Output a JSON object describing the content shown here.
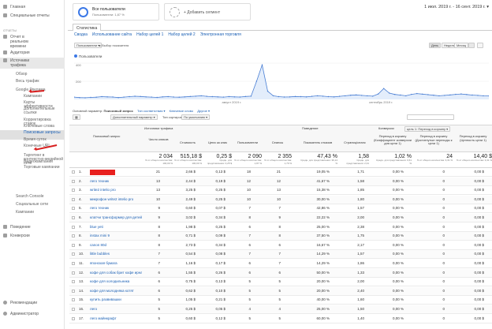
{
  "sidebar": {
    "items": [
      {
        "label": "Главная"
      },
      {
        "label": "Специальные отчеты"
      },
      {
        "label": "ОТЧЕТЫ"
      },
      {
        "label": "Отчет в реальном времени"
      },
      {
        "label": "Аудитория"
      },
      {
        "label": "Источники трафика"
      }
    ],
    "sub_overview": "Обзор",
    "sub_all_traffic": "Весь трафик",
    "sub_google_ads": "Google Реклама",
    "ads_items": [
      "Кампании",
      "Карты эффективности",
      "Дополнительные ссылки",
      "Корректировка ставок",
      "Ключевые слова",
      "Поисковые запросы",
      "Время суток",
      "Конечные URL",
      "Таргетинг в контекстно-медийной сети",
      "Видеокампании",
      "Торговые кампании"
    ],
    "sub_search_console": "Search Console",
    "sub_social": "Социальные сети",
    "sub_campaigns": "Кампании",
    "conversions": "Конверсии",
    "behavior": "Поведение",
    "recommendations": "Рекомендации",
    "admin": "Администратор"
  },
  "segments": {
    "all_users": "Все пользователи",
    "all_users_sub": "Пользователи: 1,87 %",
    "add_segment": "+ Добавить сегмент"
  },
  "date_range": "1 июл. 2019 г. - 16 сент. 2019 г. ▾",
  "tab": "Статистика",
  "subtabs": [
    "Сводка",
    "Использование сайта",
    "Набор целей 1",
    "Набор целей 2",
    "Электронная торговля"
  ],
  "chart_controls": {
    "metric": "Пользователи ▾",
    "vs": "▸ Выбор показателя",
    "periods": [
      "День",
      "Неделя",
      "Месяц"
    ]
  },
  "chart_legend": "Пользователи",
  "chart_data": {
    "type": "line",
    "series": [
      {
        "name": "Пользователи",
        "values": [
          25,
          20,
          18,
          22,
          24,
          30,
          28,
          26,
          20,
          25,
          30,
          35,
          32,
          28,
          25,
          22,
          28,
          30,
          26,
          24,
          28,
          32,
          36,
          40,
          34,
          30,
          28,
          25,
          30,
          28,
          26,
          32,
          36,
          200,
          380,
          90,
          40,
          30,
          26,
          28,
          32,
          30,
          28,
          34,
          40,
          36,
          30,
          28,
          34,
          40,
          46,
          50,
          44,
          40,
          36,
          60,
          120,
          70,
          55,
          48,
          40,
          56,
          64,
          58,
          52,
          46,
          40,
          44,
          50,
          56,
          60,
          54,
          48,
          44,
          40,
          38
        ]
      }
    ],
    "ylim": [
      0,
      400
    ],
    "yticks": [
      "400",
      "200"
    ],
    "xticks": [
      "август 2019 г.",
      "сентябрь 2019 г."
    ]
  },
  "table_controls": {
    "primary_dim_label": "Основной параметр:",
    "primary_dim_value": "Поисковый запрос",
    "other_dims": [
      "Тип соответствия ▾",
      "Ключевое слово",
      "Другое ▾"
    ],
    "secondary": "Дополнительный параметр ▾",
    "sort": "Тип сортировки:",
    "sort_value": "По умолчанию ▾",
    "conv_label": "Конверсии",
    "conv_value": "цель 1: Переход в корзину ▾"
  },
  "headers": {
    "query": "Поисковый запрос",
    "acq": "Источники трафика",
    "clicks": "Число кликов",
    "cost": "Стоимость",
    "cpc": "Цена за клик",
    "users": "Пользователи",
    "sessions": "Сеансы",
    "behavior": "Поведение",
    "bounce": "Показатель отказов",
    "pages": "Страниц/сеанс",
    "conv": "Конверсии",
    "cr": "Переход в корзину (Коэффициент конверсии для цели 1)",
    "goal": "Переход в корзину (Достигнутые переходы к цели 1)",
    "value": "Переход в корзину (Ценность цели 1)"
  },
  "totals": [
    {
      "v": "2 034",
      "s": "% от общего количества: 100,00 %"
    },
    {
      "v": "515,18 $",
      "s": "% от общего количества: 100,00 %"
    },
    {
      "v": "0,25 $",
      "s": "Средн. для представления: 0,25 $"
    },
    {
      "v": "2 090",
      "s": "% от общего количества: 1,87 %"
    },
    {
      "v": "2 355",
      "s": "% от общего количества: 1,79 %"
    },
    {
      "v": "47,43 %",
      "s": "Средн. для представления: 39,14 %"
    },
    {
      "v": "1,58",
      "s": "Средн. для представления: 2,31"
    },
    {
      "v": "1,02 %",
      "s": "Средн. для представления: 0,61 %"
    },
    {
      "v": "24",
      "s": "% от общего количества: 3,31 %"
    },
    {
      "v": "14,40 $",
      "s": "% от общего количества: 3,31 %"
    }
  ],
  "rows": [
    {
      "n": "1.",
      "q": "",
      "clicks": "21",
      "cost": "2,66 $",
      "cpc": "0,13 $",
      "users": "18",
      "sessions": "21",
      "bounce": "19,05 %",
      "pages": "1,71",
      "cr": "0,00 %",
      "goal": "0",
      "val": "0,00 $",
      "redacted": true
    },
    {
      "n": "2.",
      "q": "лего техник",
      "clicks": "13",
      "cost": "2,44 $",
      "cpc": "0,19 $",
      "users": "12",
      "sessions": "12",
      "bounce": "41,67 %",
      "pages": "1,58",
      "cr": "0,00 %",
      "goal": "0",
      "val": "0,00 $"
    },
    {
      "n": "3.",
      "q": "write2 intelio pro",
      "clicks": "13",
      "cost": "3,25 $",
      "cpc": "0,25 $",
      "users": "10",
      "sessions": "13",
      "bounce": "15,38 %",
      "pages": "1,85",
      "cr": "0,00 %",
      "goal": "0",
      "val": "0,00 $"
    },
    {
      "n": "4.",
      "q": "микрофон write2 intelio pro",
      "clicks": "10",
      "cost": "2,49 $",
      "cpc": "0,25 $",
      "users": "10",
      "sessions": "10",
      "bounce": "30,00 %",
      "pages": "1,80",
      "cr": "0,00 %",
      "goal": "0",
      "val": "0,00 $"
    },
    {
      "n": "5.",
      "q": "лего техник",
      "clicks": "9",
      "cost": "0,60 $",
      "cpc": "0,07 $",
      "users": "7",
      "sessions": "7",
      "bounce": "42,86 %",
      "pages": "1,57",
      "cr": "0,00 %",
      "goal": "0",
      "val": "0,00 $"
    },
    {
      "n": "6.",
      "q": "клатчи трансформер для детей купить",
      "clicks": "9",
      "cost": "3,02 $",
      "cpc": "0,34 $",
      "users": "8",
      "sessions": "9",
      "bounce": "22,22 %",
      "pages": "2,00",
      "cr": "0,00 %",
      "goal": "0",
      "val": "0,00 $"
    },
    {
      "n": "7.",
      "q": "blue yeti",
      "clicks": "8",
      "cost": "1,98 $",
      "cpc": "0,25 $",
      "users": "6",
      "sessions": "8",
      "bounce": "25,00 %",
      "pages": "2,38",
      "cr": "0,00 %",
      "goal": "0",
      "val": "0,00 $"
    },
    {
      "n": "8.",
      "q": "instax mini 9",
      "clicks": "8",
      "cost": "0,71 $",
      "cpc": "0,09 $",
      "users": "7",
      "sessions": "8",
      "bounce": "37,50 %",
      "pages": "1,75",
      "cr": "0,00 %",
      "goal": "0",
      "val": "0,00 $"
    },
    {
      "n": "9.",
      "q": "canon 80d",
      "clicks": "8",
      "cost": "2,73 $",
      "cpc": "0,34 $",
      "users": "6",
      "sessions": "6",
      "bounce": "16,67 %",
      "pages": "2,17",
      "cr": "0,00 %",
      "goal": "0",
      "val": "0,00 $"
    },
    {
      "n": "10.",
      "q": "little bubbles",
      "clicks": "7",
      "cost": "0,54 $",
      "cpc": "0,08 $",
      "users": "7",
      "sessions": "7",
      "bounce": "14,29 %",
      "pages": "1,57",
      "cr": "0,00 %",
      "goal": "0",
      "val": "0,00 $"
    },
    {
      "n": "11.",
      "q": "японская бумага",
      "clicks": "7",
      "cost": "1,16 $",
      "cpc": "0,17 $",
      "users": "6",
      "sessions": "7",
      "bounce": "14,29 %",
      "pages": "1,86",
      "cr": "0,00 %",
      "goal": "0",
      "val": "0,00 $"
    },
    {
      "n": "12.",
      "q": "кофе для собак брит кофе ирнана к",
      "clicks": "6",
      "cost": "1,55 $",
      "cpc": "0,26 $",
      "users": "6",
      "sessions": "6",
      "bounce": "50,00 %",
      "pages": "1,33",
      "cr": "0,00 %",
      "goal": "0",
      "val": "0,00 $"
    },
    {
      "n": "13.",
      "q": "кофе для холодильника",
      "clicks": "6",
      "cost": "0,75 $",
      "cpc": "0,13 $",
      "users": "5",
      "sessions": "5",
      "bounce": "20,00 %",
      "pages": "2,00",
      "cr": "0,00 %",
      "goal": "0",
      "val": "0,00 $"
    },
    {
      "n": "14.",
      "q": "кофе для молодняка котят",
      "clicks": "6",
      "cost": "0,62 $",
      "cpc": "0,10 $",
      "users": "5",
      "sessions": "5",
      "bounce": "20,00 %",
      "pages": "2,40",
      "cr": "0,00 %",
      "goal": "0",
      "val": "0,00 $"
    },
    {
      "n": "15.",
      "q": "купить развивашки",
      "clicks": "5",
      "cost": "1,05 $",
      "cpc": "0,21 $",
      "users": "5",
      "sessions": "5",
      "bounce": "40,00 %",
      "pages": "1,60",
      "cr": "0,00 %",
      "goal": "0",
      "val": "0,00 $"
    },
    {
      "n": "16.",
      "q": "лего",
      "clicks": "5",
      "cost": "0,25 $",
      "cpc": "0,05 $",
      "users": "4",
      "sessions": "4",
      "bounce": "25,00 %",
      "pages": "1,50",
      "cr": "0,00 %",
      "goal": "0",
      "val": "0,00 $"
    },
    {
      "n": "17.",
      "q": "лего майнкрафт",
      "clicks": "5",
      "cost": "0,60 $",
      "cpc": "0,12 $",
      "users": "5",
      "sessions": "5",
      "bounce": "60,00 %",
      "pages": "1,40",
      "cr": "0,00 %",
      "goal": "0",
      "val": "0,00 $"
    }
  ],
  "colors": {
    "accent": "#3b78e7",
    "redact": "#e8201e",
    "arrow": "#d81e1e",
    "line": "#4a7fd4"
  }
}
